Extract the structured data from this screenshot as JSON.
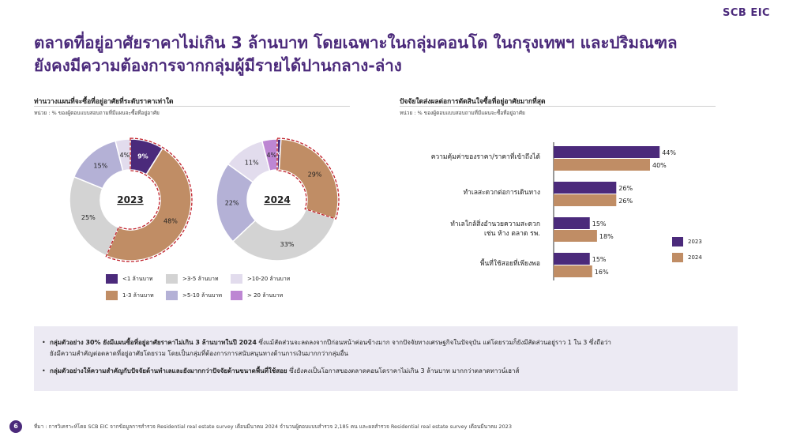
{
  "logo": "SCB EIC",
  "title_line1": "ตลาดที่อยู่อาศัยราคาไม่เกิน 3 ล้านบาท โดยเฉพาะในกลุ่มคอนโด ในกรุงเทพฯ และปริมณฑล",
  "title_line2": "ยังคงมีความต้องการจากกลุ่มผู้มีรายได้ปานกลาง-ล่าง",
  "left_section": {
    "heading": "ท่านวางแผนที่จะซื้อที่อยู่อาศัยที่ระดับราคาเท่าใด",
    "unit": "หน่วย : % ของผู้ตอบแบบสอบถามที่มีแผนจะซื้อที่อยู่อาศัย"
  },
  "right_section": {
    "heading": "ปัจจัยใดส่งผลต่อการตัดสินใจซื้อที่อยู่อาศัยมากที่สุด",
    "unit": "หน่วย : % ของผู้ตอบแบบสอบถามที่มีแผนจะซื้อที่อยู่อาศัย"
  },
  "chart_data": [
    {
      "type": "pie",
      "title": "2023",
      "categories": [
        "<1 ล้านบาท",
        "1-3 ล้านบาท",
        ">3-5 ล้านบาท",
        ">5-10 ล้านบาท",
        ">10-20 ล้านบาท",
        "> 20 ล้านบาท"
      ],
      "values": [
        9,
        48,
        25,
        15,
        4,
        0
      ],
      "labels": [
        "9%",
        "48%",
        "25%",
        "15%",
        "4%",
        ""
      ],
      "colors": [
        "#4b2a7b",
        "#c08d65",
        "#d3d3d3",
        "#b4b1d6",
        "#e2dced",
        "#bd86d3"
      ],
      "highlight": [
        "<1 ล้านบาท",
        "1-3 ล้านบาท"
      ]
    },
    {
      "type": "pie",
      "title": "2024",
      "categories": [
        "<1 ล้านบาท",
        "1-3 ล้านบาท",
        ">3-5 ล้านบาท",
        ">5-10 ล้านบาท",
        ">10-20 ล้านบาท",
        "> 20 ล้านบาท"
      ],
      "values": [
        1,
        29,
        33,
        22,
        11,
        4
      ],
      "labels": [
        "1%",
        "29%",
        "33%",
        "22%",
        "11%",
        "4%"
      ],
      "colors": [
        "#4b2a7b",
        "#c08d65",
        "#d3d3d3",
        "#b4b1d6",
        "#e2dced",
        "#bd86d3"
      ],
      "highlight": [
        "<1 ล้านบาท",
        "1-3 ล้านบาท"
      ]
    },
    {
      "type": "bar",
      "orientation": "horizontal",
      "categories": [
        "ความคุ้มค่าของราคา/ราคาที่เข้าถึงได้",
        "ทำเลสะดวกต่อการเดินทาง",
        "ทำเลใกล้สิ่งอำนวยความสะดวก เช่น ห้าง ตลาด รพ.",
        "พื้นที่ใช้สอยที่เพียงพอ"
      ],
      "series": [
        {
          "name": "2023",
          "values": [
            44,
            26,
            15,
            15
          ],
          "labels": [
            "44%",
            "26%",
            "15%",
            "15%"
          ],
          "color": "#4b2a7b"
        },
        {
          "name": "2024",
          "values": [
            40,
            26,
            18,
            16
          ],
          "labels": [
            "40%",
            "26%",
            "18%",
            "16%"
          ],
          "color": "#c08d65"
        }
      ],
      "legend": "right"
    }
  ],
  "bar_labels": [
    {
      "l1": "ความคุ้มค่าของราคา/ราคาที่เข้าถึงได้",
      "l2": ""
    },
    {
      "l1": "ทำเลสะดวกต่อการเดินทาง",
      "l2": ""
    },
    {
      "l1": "ทำเลใกล้สิ่งอำนวยความสะดวก",
      "l2": "เช่น ห้าง ตลาด รพ."
    },
    {
      "l1": "พื้นที่ใช้สอยที่เพียงพอ",
      "l2": ""
    }
  ],
  "notes": {
    "b1_bold": "กลุ่มตัวอย่าง 30% ยังมีแผนซื้อที่อยู่อาศัยราคาไม่เกิน 3 ล้านบาทในปี 2024",
    "b1_rest": " ซึ่งแม้สัดส่วนจะลดลงจากปีก่อนหน้าค่อนข้างมาก จากปัจจัยทางเศรษฐกิจในปัจจุบัน แต่โดยรวมก็ยังมีสัดส่วนอยู่ราว 1 ใน 3 ซึ่งถือว่า",
    "b1_line2": "ยังมีความสำคัญต่อตลาดที่อยู่อาศัยโดยรวม โดยเป็นกลุ่มที่ต้องการการสนับสนุนทางด้านการเงินมากกว่ากลุ่มอื่น",
    "b2_bold": "กลุ่มตัวอย่างให้ความสำคัญกับปัจจัยด้านทำเลและยังมากกว่าปัจจัยด้านขนาดพื้นที่ใช้สอย",
    "b2_rest": " ซึ่งยังคงเป็นโอกาสของตลาดคอนโดราคาไม่เกิน 3 ล้านบาท มากกว่าตลาดทาวน์เฮาส์"
  },
  "page_number": "6",
  "source": "ที่มา : การวิเคราะห์โดย SCB EIC จากข้อมูลการสำรวจ Residential real estate survey เดือนมีนาคม 2024 จำนวนผู้ตอบแบบสำรวจ 2,185 คน และผลสำรวจ Residential real estate survey เดือนมีนาคม 2023"
}
